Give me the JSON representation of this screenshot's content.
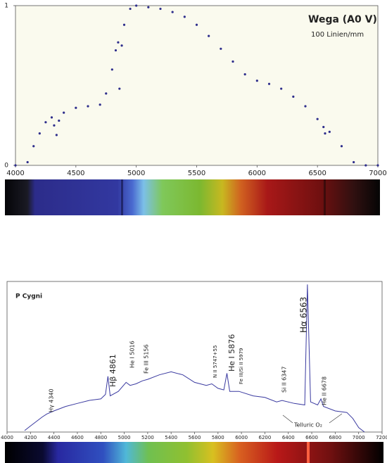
{
  "chart_data": [
    {
      "type": "scatter",
      "title": "Wega (A0 V)",
      "subtitle": "100 Linien/mm",
      "x": [
        4000,
        4100,
        4150,
        4200,
        4250,
        4300,
        4320,
        4340,
        4360,
        4400,
        4500,
        4600,
        4700,
        4750,
        4800,
        4830,
        4850,
        4861,
        4880,
        4900,
        4950,
        5000,
        5100,
        5200,
        5300,
        5400,
        5500,
        5600,
        5700,
        5800,
        5900,
        6000,
        6100,
        6200,
        6300,
        6400,
        6500,
        6550,
        6563,
        6600,
        6700,
        6800,
        6900,
        7000
      ],
      "values": [
        0,
        0.02,
        0.12,
        0.2,
        0.27,
        0.3,
        0.25,
        0.19,
        0.28,
        0.33,
        0.36,
        0.37,
        0.38,
        0.45,
        0.6,
        0.72,
        0.77,
        0.48,
        0.75,
        0.88,
        0.98,
        1.0,
        0.99,
        0.98,
        0.96,
        0.93,
        0.88,
        0.81,
        0.73,
        0.65,
        0.57,
        0.53,
        0.51,
        0.48,
        0.43,
        0.37,
        0.29,
        0.24,
        0.2,
        0.21,
        0.12,
        0.02,
        0,
        0
      ],
      "color": "#2e2e8c",
      "xlim": [
        4000,
        7000
      ],
      "xticks": [
        4000,
        4500,
        5000,
        5500,
        6000,
        6500,
        7000
      ],
      "ylim": [
        0,
        1
      ],
      "yticks": [
        0,
        1
      ]
    },
    {
      "type": "line",
      "title": "P Cygni",
      "x": [
        4150,
        4200,
        4300,
        4340,
        4400,
        4500,
        4600,
        4700,
        4800,
        4840,
        4861,
        4880,
        4950,
        5016,
        5050,
        5100,
        5156,
        5200,
        5300,
        5400,
        5500,
        5600,
        5700,
        5747,
        5800,
        5850,
        5876,
        5900,
        5979,
        6100,
        6200,
        6300,
        6347,
        6450,
        6540,
        6563,
        6590,
        6650,
        6678,
        6700,
        6800,
        6900,
        6950,
        7000,
        7050
      ],
      "values": [
        0.01,
        0.04,
        0.1,
        0.12,
        0.14,
        0.17,
        0.19,
        0.21,
        0.22,
        0.25,
        0.37,
        0.24,
        0.27,
        0.33,
        0.31,
        0.32,
        0.34,
        0.35,
        0.38,
        0.4,
        0.38,
        0.33,
        0.31,
        0.32,
        0.29,
        0.28,
        0.39,
        0.27,
        0.27,
        0.24,
        0.23,
        0.2,
        0.21,
        0.19,
        0.18,
        0.98,
        0.2,
        0.18,
        0.22,
        0.17,
        0.14,
        0.13,
        0.09,
        0.03,
        0
      ],
      "color": "#3a3aa0",
      "xlim": [
        4000,
        7200
      ],
      "xticks": [
        4000,
        4200,
        4400,
        4600,
        4800,
        5000,
        5200,
        5400,
        5600,
        5800,
        6000,
        6200,
        6400,
        6600,
        6800,
        7000,
        7200
      ],
      "ylim": [
        0,
        1
      ],
      "annotations": [
        "Hγ 4340",
        "Hβ 4861",
        "He I 5016",
        "Fe III 5156",
        "N II 5747+55",
        "He I 5876",
        "Fe III/Si II 5979",
        "Si II 6347",
        "Hα 6563",
        "He II 6678",
        "Telluric O₂"
      ]
    }
  ]
}
